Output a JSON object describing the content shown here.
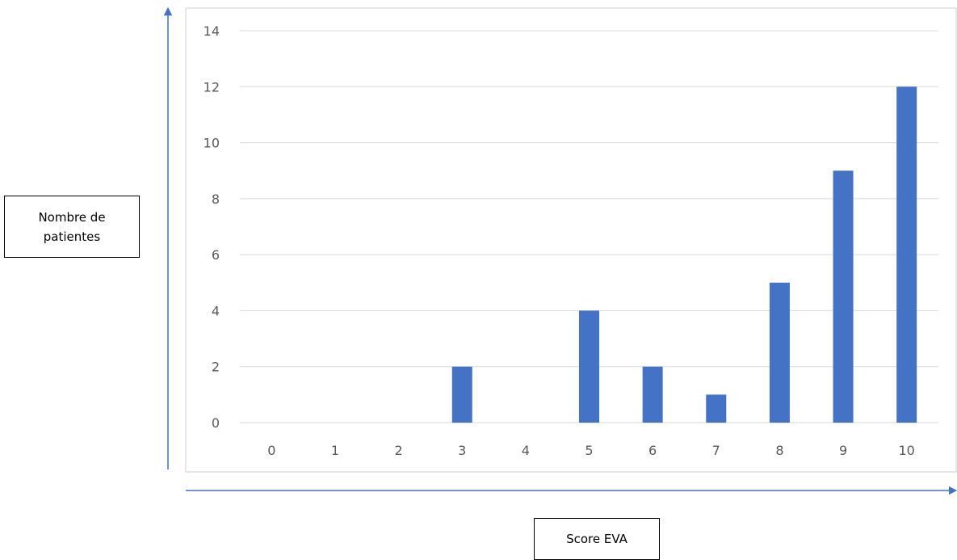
{
  "chart_data": {
    "type": "bar",
    "categories": [
      "0",
      "1",
      "2",
      "3",
      "4",
      "5",
      "6",
      "7",
      "8",
      "9",
      "10"
    ],
    "values": [
      0,
      0,
      0,
      2,
      0,
      4,
      2,
      1,
      5,
      9,
      12
    ],
    "title": "",
    "xlabel": "Score EVA",
    "ylabel": "Nombre de patientes",
    "ylim": [
      0,
      14
    ],
    "yticks": [
      0,
      2,
      4,
      6,
      8,
      10,
      12,
      14
    ],
    "grid": true,
    "bar_color": "#4472C4",
    "axis_arrow_color": "#4472C4"
  }
}
